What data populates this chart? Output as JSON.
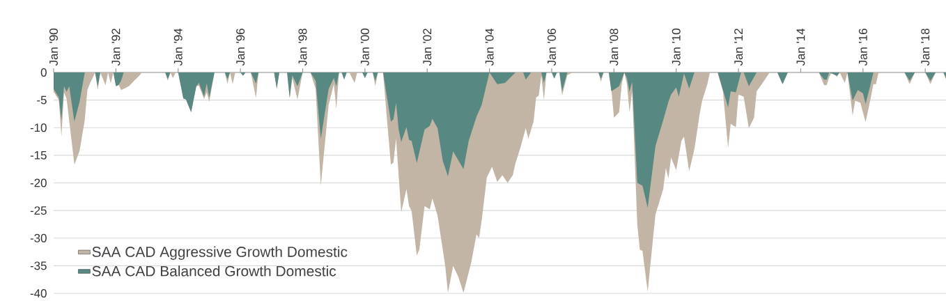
{
  "chart_data": {
    "type": "area",
    "xlim": [
      "1990-01",
      "2018-09"
    ],
    "ylim": [
      -40,
      0
    ],
    "xticks": [
      {
        "value": "1990-01",
        "label": "Jan '90"
      },
      {
        "value": "1992-01",
        "label": "Jan '92"
      },
      {
        "value": "1994-01",
        "label": "Jan '94"
      },
      {
        "value": "1996-01",
        "label": "Jan '96"
      },
      {
        "value": "1998-01",
        "label": "Jan '98"
      },
      {
        "value": "2000-01",
        "label": "Jan '00"
      },
      {
        "value": "2002-01",
        "label": "Jan '02"
      },
      {
        "value": "2004-01",
        "label": "Jan '04"
      },
      {
        "value": "2006-01",
        "label": "Jan '06"
      },
      {
        "value": "2008-01",
        "label": "Jan '08"
      },
      {
        "value": "2010-01",
        "label": "Jan '10"
      },
      {
        "value": "2012-01",
        "label": "Jan '12"
      },
      {
        "value": "2014-01",
        "label": "Jan '14"
      },
      {
        "value": "2016-01",
        "label": "Jan '16"
      },
      {
        "value": "2018-01",
        "label": "Jan '18"
      }
    ],
    "yticks": [
      0,
      -5,
      -10,
      -15,
      -20,
      -25,
      -30,
      -35,
      -40
    ],
    "grid": "y",
    "legend": "bottom left",
    "series": [
      {
        "name": "SAA CAD Aggressive Growth Domestic",
        "color": "#c2b5a5",
        "x": [
          "1990-01",
          "1990-03",
          "1990-04",
          "1990-05",
          "1990-06",
          "1990-09",
          "1990-11",
          "1991-01",
          "1991-02",
          "1991-03",
          "1991-05",
          "1991-06",
          "1991-07",
          "1991-09",
          "1991-10",
          "1991-11",
          "1991-12",
          "1992-03",
          "1992-06",
          "1992-08",
          "1992-10",
          "1992-11",
          "1993-08",
          "1993-09",
          "1993-10",
          "1993-11",
          "1993-12",
          "1994-01",
          "1994-03",
          "1994-04",
          "1994-06",
          "1994-08",
          "1994-09",
          "1994-11",
          "1994-12",
          "1995-01",
          "1995-03",
          "1995-07",
          "1995-08",
          "1995-09",
          "1995-10",
          "1995-11",
          "1996-05",
          "1996-07",
          "1996-08",
          "1997-02",
          "1997-03",
          "1997-04",
          "1997-07",
          "1997-08",
          "1997-09",
          "1997-11",
          "1998-01",
          "1998-04",
          "1998-06",
          "1998-08",
          "1998-11",
          "1999-01",
          "1999-02",
          "1999-03",
          "1999-07",
          "1999-09",
          "1999-10",
          "1999-12",
          "2000-01",
          "2000-02",
          "2000-04",
          "2000-05",
          "2000-06",
          "2000-08",
          "2000-09",
          "2000-11",
          "2000-12",
          "2001-01",
          "2001-03",
          "2001-05",
          "2001-06",
          "2001-07",
          "2001-09",
          "2001-10",
          "2001-12",
          "2002-02",
          "2002-03",
          "2002-05",
          "2002-08",
          "2002-09",
          "2002-11",
          "2003-01",
          "2003-03",
          "2003-06",
          "2003-08",
          "2003-09",
          "2003-10",
          "2003-12",
          "2004-02",
          "2004-04",
          "2004-06",
          "2004-08",
          "2004-10",
          "2004-11",
          "2005-01",
          "2005-03",
          "2005-04",
          "2005-06",
          "2005-07",
          "2005-08",
          "2005-09",
          "2005-10",
          "2005-11",
          "2006-01",
          "2006-02",
          "2006-03",
          "2006-04",
          "2006-05",
          "2006-07",
          "2006-09",
          "2007-07",
          "2007-08",
          "2007-09",
          "2007-11",
          "2007-12",
          "2008-01",
          "2008-03",
          "2008-04",
          "2008-05",
          "2008-06",
          "2008-07",
          "2008-08",
          "2008-10",
          "2008-11",
          "2008-12",
          "2009-02",
          "2009-05",
          "2009-08",
          "2009-09",
          "2009-10",
          "2009-11",
          "2010-01",
          "2010-03",
          "2010-04",
          "2010-06",
          "2010-08",
          "2010-09",
          "2010-10",
          "2010-11",
          "2011-01",
          "2011-02",
          "2011-05",
          "2011-07",
          "2011-09",
          "2011-10",
          "2011-12",
          "2012-01",
          "2012-03",
          "2012-05",
          "2012-07",
          "2012-08",
          "2012-10",
          "2013-01",
          "2013-04",
          "2013-06",
          "2013-08",
          "2014-08",
          "2014-10",
          "2014-11",
          "2014-12",
          "2015-01",
          "2015-03",
          "2015-04",
          "2015-06",
          "2015-07",
          "2015-09",
          "2015-10",
          "2015-12",
          "2016-02",
          "2016-04",
          "2016-05",
          "2016-06",
          "2016-07",
          "2017-05",
          "2017-07",
          "2017-09",
          "2018-01",
          "2018-03",
          "2018-05",
          "2018-08",
          "2018-09"
        ],
        "values": [
          -3.5,
          -5,
          -11.6,
          -3.6,
          -4.8,
          -16.7,
          -14.2,
          -8.6,
          -3.2,
          -2,
          0,
          -3.2,
          0,
          -2.3,
          0,
          -2,
          0,
          -3.2,
          -2.5,
          -1.5,
          -0.6,
          0,
          0,
          -1.5,
          0,
          -1,
          0,
          0,
          -4.7,
          -4.9,
          -7.2,
          -2.5,
          -2.4,
          -4.8,
          -3.6,
          -5.3,
          0,
          0,
          -2.1,
          0,
          -2.1,
          0,
          0,
          -4.6,
          0,
          0,
          -2.9,
          0,
          0,
          -4.6,
          -1,
          -4.9,
          0,
          0,
          -3,
          -20.5,
          -5.9,
          -2.1,
          -6.6,
          0,
          0,
          -1.9,
          0,
          0,
          -1,
          0,
          0,
          -2.5,
          0,
          0,
          -5.7,
          -16.7,
          -16.3,
          -12,
          -25.3,
          -21.1,
          -24.2,
          -25.1,
          -33.2,
          -32,
          -24.2,
          -24.8,
          -22.8,
          -25.9,
          -35.2,
          -39.9,
          -35,
          -37,
          -39.9,
          -34.4,
          -29.3,
          -30,
          -26.8,
          -19,
          -17.1,
          -19.8,
          -18.6,
          -20,
          -18.6,
          -16.5,
          -13.5,
          -10.1,
          -12,
          -8.9,
          -4.5,
          -4.2,
          -0.6,
          -5,
          0,
          0,
          -1.1,
          0,
          0,
          -4.2,
          -0.5,
          0,
          0,
          -1.7,
          0,
          0,
          -3,
          -8.2,
          -7.2,
          -2.1,
          0,
          -2.1,
          -7.2,
          -3.4,
          -27.6,
          -32.1,
          -32.3,
          -39.7,
          -25.7,
          -21.1,
          -17.3,
          -19.2,
          -15.4,
          -17.7,
          -12.4,
          -11.6,
          -17.9,
          -13.9,
          -10.8,
          -7.6,
          -5.1,
          -2.1,
          0,
          0,
          -3.4,
          -13.7,
          -9.3,
          -9.9,
          -4,
          -4.4,
          -10.1,
          -8.2,
          -3.4,
          -2.1,
          0,
          0,
          -2.1,
          0,
          0,
          -2.3,
          -2.3,
          -0.8,
          0,
          -0.8,
          0,
          -1.9,
          0,
          -7.8,
          -5.1,
          -5.5,
          -9,
          -4.6,
          -2.1,
          -2.1,
          0,
          0,
          -2.1,
          0,
          0,
          -2.1,
          0,
          0,
          -1.3
        ]
      },
      {
        "name": "SAA CAD Balanced Growth Domestic",
        "color": "#578882",
        "x": [
          "1990-01",
          "1990-03",
          "1990-04",
          "1990-05",
          "1990-06",
          "1990-07",
          "1990-09",
          "1990-11",
          "1991-01",
          "1991-05",
          "1991-06",
          "1991-07",
          "1991-12",
          "1992-01",
          "1992-02",
          "1992-03",
          "1992-04",
          "1993-08",
          "1993-09",
          "1993-10",
          "1994-01",
          "1994-03",
          "1994-04",
          "1994-06",
          "1994-08",
          "1994-09",
          "1994-11",
          "1994-12",
          "1995-01",
          "1995-03",
          "1995-07",
          "1995-08",
          "1995-09",
          "1996-01",
          "1996-02",
          "1996-03",
          "1996-05",
          "1996-07",
          "1996-08",
          "1997-02",
          "1997-03",
          "1997-04",
          "1997-07",
          "1997-08",
          "1997-09",
          "1997-11",
          "1998-01",
          "1998-04",
          "1998-06",
          "1998-08",
          "1998-11",
          "1999-01",
          "1999-02",
          "1999-03",
          "1999-04",
          "1999-05",
          "1999-06",
          "1999-12",
          "2000-01",
          "2000-02",
          "2000-04",
          "2000-05",
          "2000-06",
          "2000-08",
          "2000-09",
          "2000-11",
          "2000-12",
          "2001-01",
          "2001-02",
          "2001-03",
          "2001-05",
          "2001-06",
          "2001-07",
          "2001-09",
          "2001-12",
          "2002-02",
          "2002-03",
          "2002-05",
          "2002-07",
          "2002-09",
          "2002-11",
          "2003-03",
          "2003-05",
          "2003-08",
          "2003-10",
          "2004-01",
          "2004-04",
          "2004-07",
          "2004-11",
          "2005-02",
          "2005-03",
          "2005-05",
          "2005-09",
          "2005-10",
          "2005-11",
          "2006-01",
          "2006-02",
          "2006-03",
          "2006-04",
          "2006-05",
          "2006-07",
          "2007-07",
          "2007-08",
          "2007-09",
          "2007-11",
          "2007-12",
          "2008-03",
          "2008-05",
          "2008-06",
          "2008-07",
          "2008-08",
          "2008-10",
          "2008-12",
          "2009-02",
          "2009-05",
          "2009-08",
          "2009-10",
          "2009-11",
          "2010-01",
          "2010-02",
          "2010-04",
          "2010-06",
          "2010-08",
          "2011-05",
          "2011-09",
          "2011-10",
          "2011-12",
          "2012-02",
          "2012-03",
          "2012-05",
          "2012-08",
          "2013-04",
          "2013-06",
          "2013-08",
          "2014-08",
          "2014-10",
          "2014-11",
          "2014-12",
          "2015-03",
          "2015-04",
          "2015-07",
          "2015-09",
          "2015-11",
          "2016-01",
          "2016-02",
          "2016-04",
          "2016-05",
          "2017-05",
          "2017-07",
          "2017-09",
          "2018-01",
          "2018-03",
          "2018-05",
          "2018-08",
          "2018-09"
        ],
        "values": [
          -3,
          -4.5,
          -8.6,
          -2.5,
          -3.5,
          -2.5,
          -8.9,
          -5.3,
          0,
          0,
          -2.5,
          0,
          0,
          -2.5,
          -2.3,
          -1.5,
          0,
          0,
          -1.2,
          0,
          0,
          -4.7,
          -4.9,
          -7.2,
          -2.5,
          -1.9,
          -4.4,
          -2,
          -4.5,
          0,
          0,
          -1.2,
          0,
          0,
          -0.6,
          0,
          0,
          -2,
          0,
          0,
          -2.9,
          0,
          0,
          -4.6,
          -0.5,
          -2.5,
          0,
          0,
          -1.5,
          -12,
          -3,
          -1,
          -2.5,
          0,
          0,
          -1.3,
          0,
          0,
          -1,
          0,
          0,
          -1.5,
          0,
          0,
          -3,
          -8.9,
          -8.5,
          -5.5,
          -10.3,
          -12.6,
          -9.9,
          -12.2,
          -12.4,
          -16.4,
          -10.3,
          -9.7,
          -8.4,
          -10.1,
          -16,
          -18.8,
          -14.3,
          -17.5,
          -12.4,
          -8,
          -5.9,
          0,
          -2.1,
          -1.9,
          0,
          0,
          -1.3,
          0,
          0,
          -1.9,
          0,
          0,
          -1.1,
          0,
          0,
          -3.4,
          0,
          0,
          -1.1,
          0,
          0,
          -3.4,
          -2.5,
          0,
          -1,
          -3.5,
          -1.7,
          -20,
          -20.5,
          -24.5,
          -13.3,
          -8.6,
          -5.3,
          -4,
          -2.7,
          -4.4,
          -0.2,
          -2.9,
          0,
          0,
          -6.3,
          -3.4,
          -3.6,
          0,
          0,
          -2.5,
          0,
          0,
          -2.1,
          0,
          0,
          -1.3,
          -1.3,
          0,
          -0.6,
          0,
          0,
          -5.1,
          -3.2,
          -3.8,
          -5.7,
          -2,
          0,
          0,
          -1.5,
          0,
          0,
          -1.5,
          0,
          0,
          -1
        ]
      }
    ]
  }
}
